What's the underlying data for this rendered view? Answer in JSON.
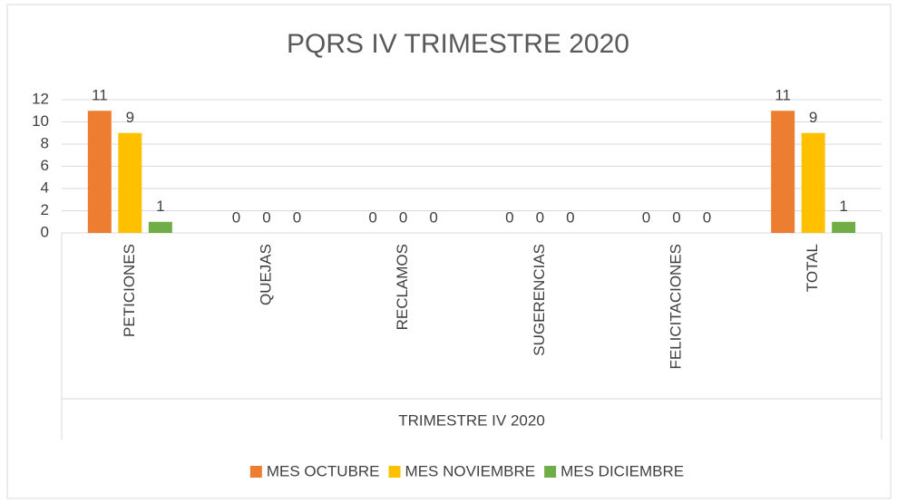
{
  "chart_data": {
    "type": "bar",
    "title": "PQRS IV TRIMESTRE 2020",
    "xlabel": "TRIMESTRE IV 2020",
    "categories": [
      "PETICIONES",
      "QUEJAS",
      "RECLAMOS",
      "SUGERENCIAS",
      "FELICITACIONES",
      "TOTAL"
    ],
    "series": [
      {
        "name": "MES OCTUBRE",
        "color": "#ed7d31",
        "values": [
          11,
          0,
          0,
          0,
          0,
          11
        ]
      },
      {
        "name": "MES NOVIEMBRE",
        "color": "#ffc000",
        "values": [
          9,
          0,
          0,
          0,
          0,
          9
        ]
      },
      {
        "name": "MES DICIEMBRE",
        "color": "#70ad47",
        "values": [
          1,
          0,
          0,
          0,
          0,
          1
        ]
      }
    ],
    "ylim": [
      0,
      12
    ],
    "yticks": [
      0,
      2,
      4,
      6,
      8,
      10,
      12
    ],
    "grid": true,
    "legend": "bottom"
  }
}
